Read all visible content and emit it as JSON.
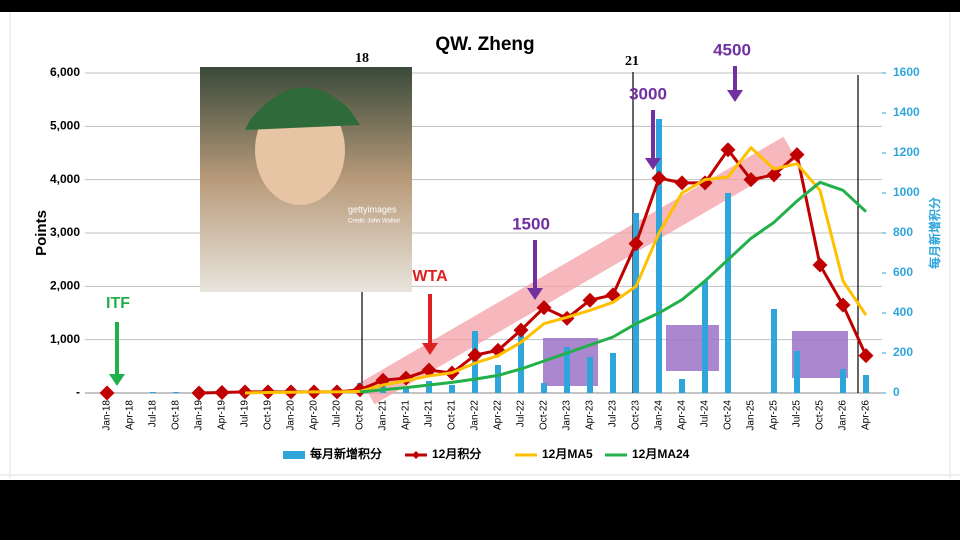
{
  "chart_data": {
    "type": "combo",
    "title": "QW. Zheng",
    "y_label": "Points",
    "y2_label": "每月新增积分",
    "categories": [
      "Jan-18",
      "Apr-18",
      "Jul-18",
      "Oct-18",
      "Jan-19",
      "Apr-19",
      "Jul-19",
      "Oct-19",
      "Jan-20",
      "Apr-20",
      "Jul-20",
      "Oct-20",
      "Jan-21",
      "Apr-21",
      "Jul-21",
      "Oct-21",
      "Jan-22",
      "Apr-22",
      "Jul-22",
      "Oct-22",
      "Jan-23",
      "Apr-23",
      "Jul-23",
      "Oct-23",
      "Jan-24",
      "Apr-24",
      "Jul-24",
      "Oct-24",
      "Jan-25",
      "Apr-25",
      "Jul-25",
      "Oct-25",
      "Jan-26",
      "Apr-26"
    ],
    "ylim": [
      0,
      6000
    ],
    "yticks": [
      {
        "value": 0,
        "label": "-"
      },
      {
        "value": 1000,
        "label": "1,000"
      },
      {
        "value": 2000,
        "label": "2,000"
      },
      {
        "value": 3000,
        "label": "3,000"
      },
      {
        "value": 4000,
        "label": "4,000"
      },
      {
        "value": 5000,
        "label": "5,000"
      },
      {
        "value": 6000,
        "label": "6,000"
      }
    ],
    "y2lim": [
      0,
      1600
    ],
    "y2ticks": [
      0,
      200,
      400,
      600,
      800,
      1000,
      1200,
      1400,
      1600
    ],
    "grid": true,
    "series": [
      {
        "name": "每月新增积分",
        "type": "bar",
        "axis": "y2",
        "color": "#2ea6dc",
        "values": [
          10,
          0,
          5,
          5,
          0,
          5,
          5,
          5,
          5,
          5,
          5,
          50,
          40,
          30,
          60,
          40,
          310,
          140,
          300,
          50,
          230,
          180,
          200,
          900,
          1370,
          70,
          560,
          1000,
          0,
          420,
          210,
          0,
          120,
          90
        ]
      },
      {
        "name": "12月积分",
        "type": "line",
        "marker": true,
        "color": "#c00000",
        "values": [
          0,
          null,
          null,
          null,
          0,
          10,
          20,
          20,
          20,
          20,
          20,
          60,
          240,
          280,
          430,
          375,
          710,
          800,
          1180,
          1600,
          1400,
          1740,
          1840,
          2800,
          4030,
          3940,
          3940,
          4560,
          4000,
          4090,
          4470,
          2400,
          1650,
          700
        ]
      },
      {
        "name": "12月MA5",
        "type": "line",
        "color": "#ffc000",
        "values": [
          null,
          null,
          null,
          null,
          null,
          null,
          0,
          10,
          15,
          20,
          20,
          30,
          150,
          230,
          320,
          380,
          560,
          700,
          950,
          1300,
          1420,
          1550,
          1700,
          2000,
          3000,
          3750,
          4000,
          4050,
          4600,
          4200,
          4300,
          3800,
          2100,
          1460
        ]
      },
      {
        "name": "12月MA24",
        "type": "line",
        "color": "#22b04a",
        "values": [
          null,
          null,
          null,
          null,
          null,
          null,
          null,
          null,
          null,
          null,
          null,
          20,
          60,
          100,
          150,
          200,
          260,
          330,
          450,
          600,
          750,
          900,
          1050,
          1300,
          1500,
          1750,
          2100,
          2500,
          2900,
          3200,
          3600,
          3950,
          3800,
          3400
        ]
      }
    ],
    "annotations": [
      {
        "text": "18",
        "color": "#000000"
      },
      {
        "text": "21",
        "color": "#000000"
      },
      {
        "text": "ITF",
        "color": "#22b04a"
      },
      {
        "text": "WTA",
        "color": "#e02020"
      },
      {
        "text": "1500",
        "color": "#7030a0"
      },
      {
        "text": "3000",
        "color": "#7030a0"
      },
      {
        "text": "4500",
        "color": "#7030a0"
      }
    ],
    "photo": {
      "watermark": "gettyimages",
      "credit": "Credit: John Walton"
    }
  }
}
